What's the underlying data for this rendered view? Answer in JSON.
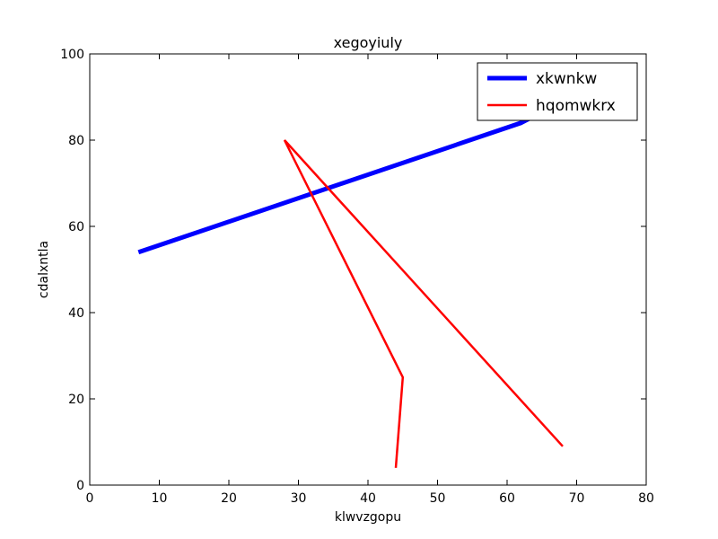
{
  "chart_data": {
    "type": "line",
    "title": "xegoyiuly",
    "xlabel": "klwvzgopu",
    "ylabel": "cdalxntla",
    "xlim": [
      0,
      80
    ],
    "ylim": [
      0,
      100
    ],
    "xticks": [
      0,
      10,
      20,
      30,
      40,
      50,
      60,
      70,
      80
    ],
    "yticks": [
      0,
      20,
      40,
      60,
      80,
      100
    ],
    "grid": false,
    "legend_position": "top-right",
    "series": [
      {
        "name": "xkwnkw",
        "color": "#0000ff",
        "points": [
          [
            7,
            54
          ],
          [
            62,
            84
          ],
          [
            64,
            86
          ],
          [
            62,
            84
          ],
          [
            68,
            89
          ]
        ]
      },
      {
        "name": "hqomwkrx",
        "color": "#ff0000",
        "points": [
          [
            44,
            4
          ],
          [
            45,
            25
          ],
          [
            28,
            80
          ],
          [
            68,
            9
          ]
        ]
      }
    ]
  }
}
